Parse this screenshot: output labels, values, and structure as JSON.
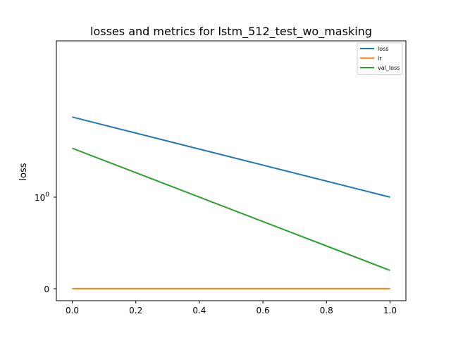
{
  "chart_data": {
    "type": "line",
    "title": "losses and metrics for lstm_512_test_wo_masking",
    "xlabel": "",
    "ylabel": "loss",
    "xlim": [
      -0.05,
      1.05
    ],
    "x_ticks": [
      "0.0",
      "0.2",
      "0.4",
      "0.6",
      "0.8",
      "1.0"
    ],
    "y_tick_labels": [
      {
        "label": "0",
        "value": 0
      },
      {
        "label": "10",
        "sup": "0",
        "value": 1
      }
    ],
    "y_scale": "symlog",
    "grid": false,
    "legend_position": "top-right",
    "series": [
      {
        "name": "loss",
        "color": "#1f77b4",
        "x": [
          0.0,
          1.0
        ],
        "y": [
          2.5,
          1.0
        ]
      },
      {
        "name": "lr",
        "color": "#ff7f0e",
        "x": [
          0.0,
          1.0
        ],
        "y": [
          0.001,
          0.001
        ]
      },
      {
        "name": "val_loss",
        "color": "#2ca02c",
        "x": [
          0.0,
          1.0
        ],
        "y": [
          1.75,
          0.2
        ]
      }
    ]
  }
}
